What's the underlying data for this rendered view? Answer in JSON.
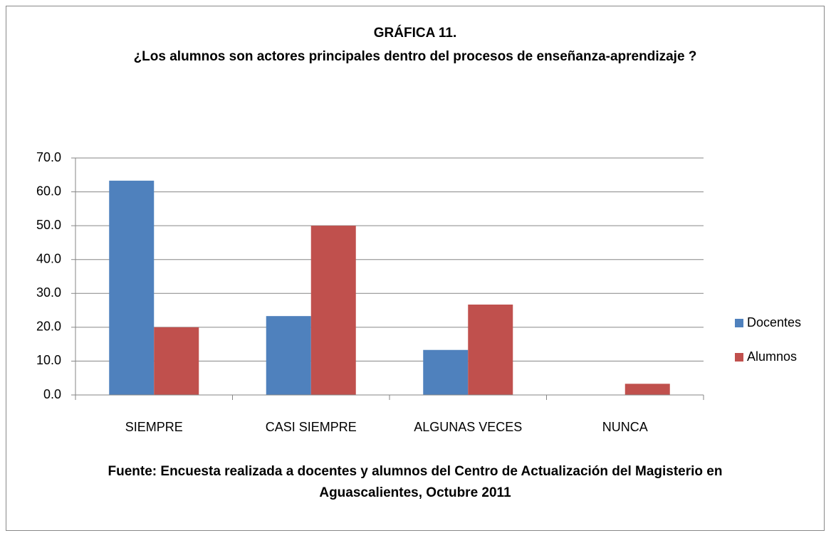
{
  "chart_data": {
    "type": "bar",
    "title": "GRÁFICA 11.",
    "subtitle": "¿Los alumnos  son actores principales  dentro del procesos de enseñanza-aprendizaje ?",
    "categories": [
      "SIEMPRE",
      "CASI SIEMPRE",
      "ALGUNAS VECES",
      "NUNCA"
    ],
    "series": [
      {
        "name": "Docentes",
        "color": "#4f81bd",
        "values": [
          63.3,
          23.3,
          13.3,
          0
        ]
      },
      {
        "name": "Alumnos",
        "color": "#c0504d",
        "values": [
          20.0,
          50.0,
          26.7,
          3.3
        ]
      }
    ],
    "ylim": [
      0,
      70
    ],
    "yticks": [
      {
        "value": 0,
        "label": "0.0"
      },
      {
        "value": 10,
        "label": "10.0"
      },
      {
        "value": 20,
        "label": "20.0"
      },
      {
        "value": 30,
        "label": "30.0"
      },
      {
        "value": 40,
        "label": "40.0"
      },
      {
        "value": 50,
        "label": "50.0"
      },
      {
        "value": 60,
        "label": "60.0"
      },
      {
        "value": 70,
        "label": "70.0"
      }
    ],
    "grid": true,
    "legend": "right",
    "note": "Fuente: Encuesta realizada a docentes y alumnos del Centro de Actualización del Magisterio en Aguascalientes, Octubre 2011"
  }
}
